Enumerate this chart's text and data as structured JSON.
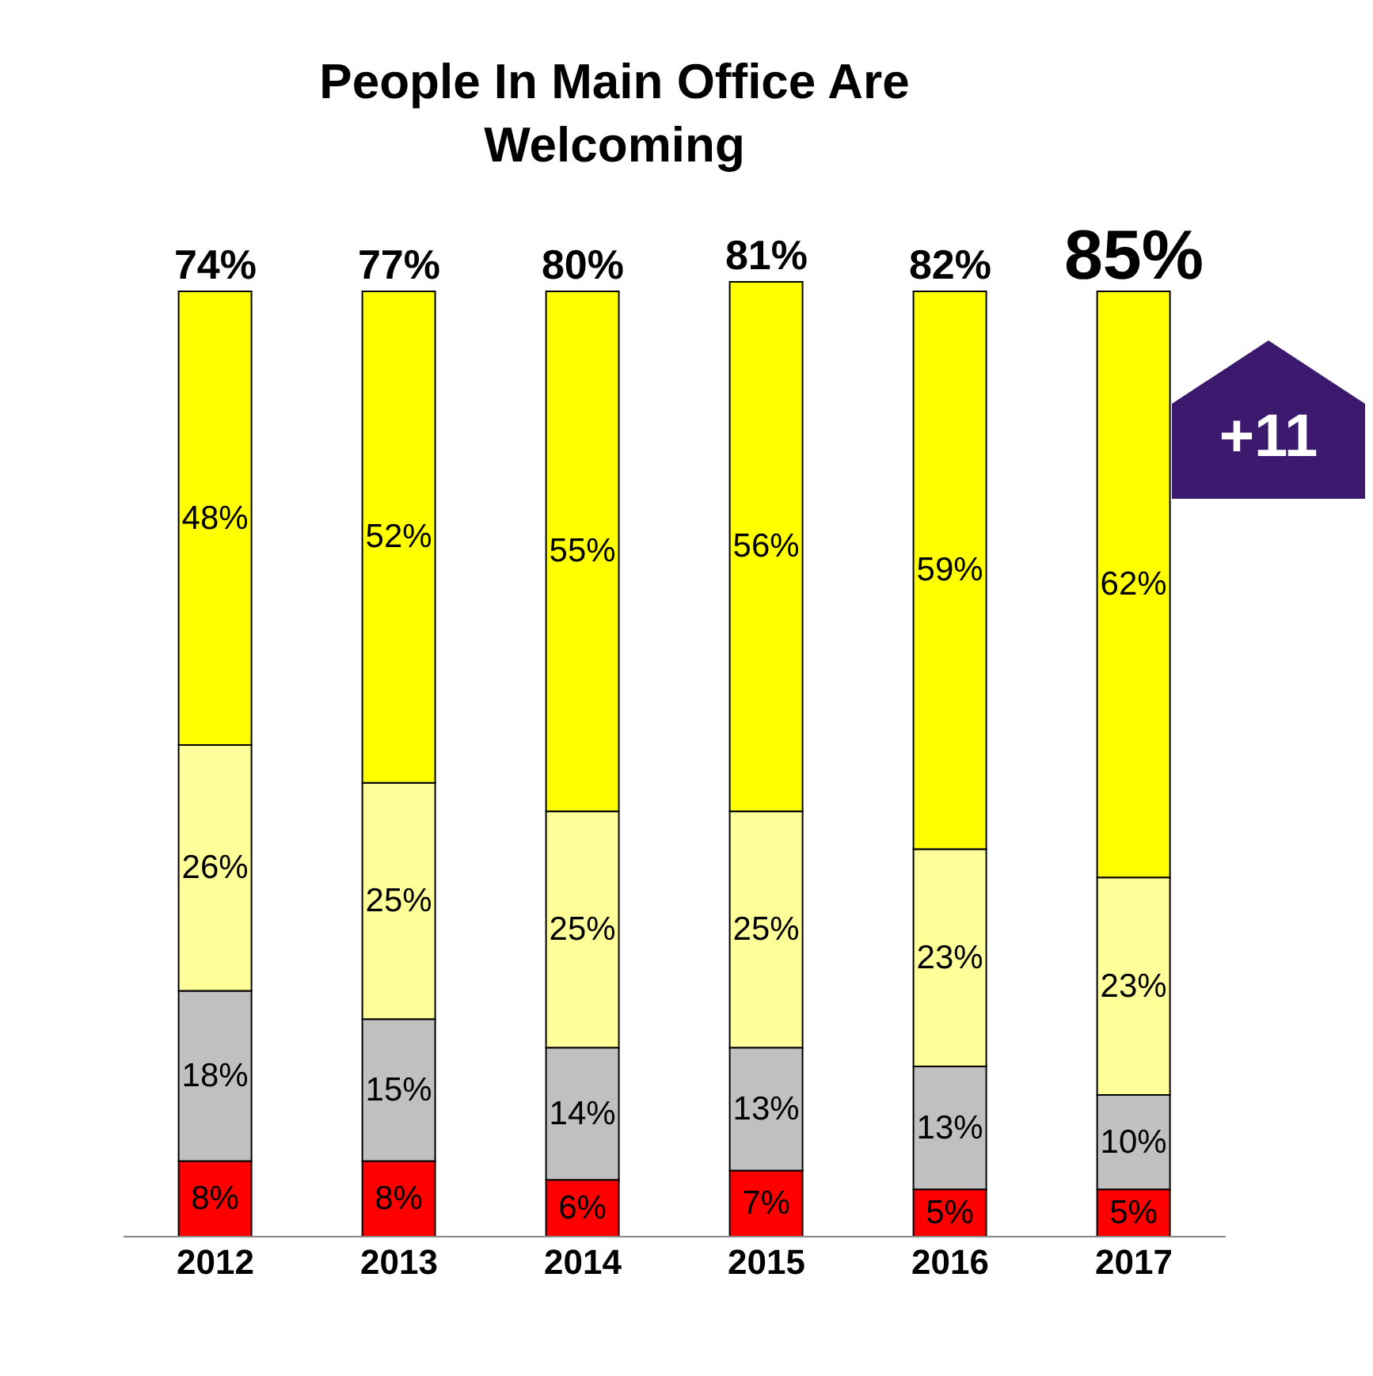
{
  "chart_data": {
    "type": "bar",
    "title": "People In Main Office Are Welcoming",
    "categories": [
      "2012",
      "2013",
      "2014",
      "2015",
      "2016",
      "2017"
    ],
    "stacked": true,
    "series": [
      {
        "color": "#ff0000",
        "values": [
          8,
          8,
          6,
          7,
          5,
          5
        ],
        "value_labels": [
          "8%",
          "8%",
          "6%",
          "7%",
          "5%",
          "5%"
        ]
      },
      {
        "color": "#c0c0c0",
        "values": [
          18,
          15,
          14,
          13,
          13,
          10
        ],
        "value_labels": [
          "18%",
          "15%",
          "14%",
          "13%",
          "13%",
          "10%"
        ]
      },
      {
        "color": "#ffff99",
        "values": [
          26,
          25,
          25,
          25,
          23,
          23
        ],
        "value_labels": [
          "26%",
          "25%",
          "25%",
          "25%",
          "23%",
          "23%"
        ]
      },
      {
        "color": "#ffff00",
        "values": [
          48,
          52,
          55,
          56,
          59,
          62
        ],
        "value_labels": [
          "48%",
          "52%",
          "55%",
          "56%",
          "59%",
          "62%"
        ]
      }
    ],
    "annotations": [
      {
        "text": "74%",
        "x": "2012",
        "y": 100
      },
      {
        "text": "77%",
        "x": "2013",
        "y": 100
      },
      {
        "text": "80%",
        "x": "2014",
        "y": 100
      },
      {
        "text": "81%",
        "x": "2015",
        "y": 101
      },
      {
        "text": "82%",
        "x": "2016",
        "y": 100
      },
      {
        "text": "85%",
        "x": "2017",
        "y": 100
      },
      "+11"
    ],
    "grid": false,
    "legend": false
  }
}
